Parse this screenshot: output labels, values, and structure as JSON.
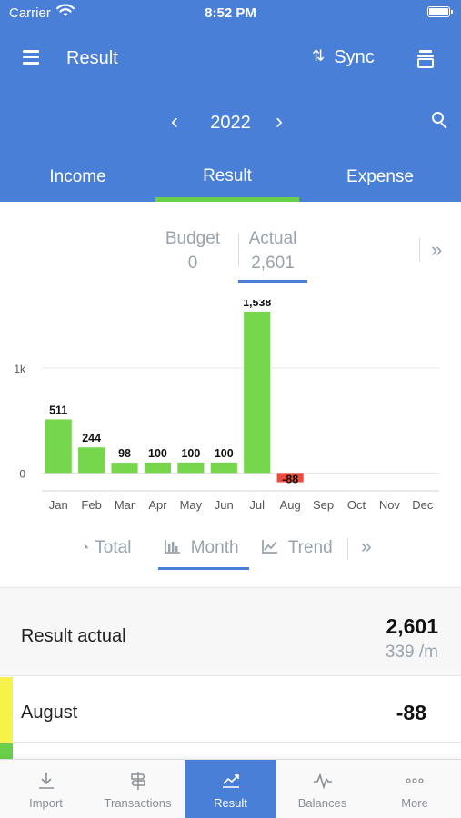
{
  "status": {
    "carrier": "Carrier",
    "time": "8:52 PM"
  },
  "header": {
    "title": "Result",
    "sync_label": "Sync",
    "year": "2022",
    "tabs": [
      {
        "label": "Income"
      },
      {
        "label": "Result"
      },
      {
        "label": "Expense"
      }
    ],
    "active_tab": "Result"
  },
  "budget_actual": {
    "budget_label": "Budget",
    "budget_value": "0",
    "actual_label": "Actual",
    "actual_value": "2,601"
  },
  "chart_data": {
    "type": "bar",
    "categories": [
      "Jan",
      "Feb",
      "Mar",
      "Apr",
      "May",
      "Jun",
      "Jul",
      "Aug",
      "Sep",
      "Oct",
      "Nov",
      "Dec"
    ],
    "values": [
      511,
      244,
      98,
      100,
      100,
      100,
      1538,
      -88,
      null,
      null,
      null,
      null
    ],
    "data_labels": [
      "511",
      "244",
      "98",
      "100",
      "100",
      "100",
      "1,538",
      "-88",
      "",
      "",
      "",
      ""
    ],
    "y_ticks": [
      {
        "value": 0,
        "label": "0"
      },
      {
        "value": 1000,
        "label": "1k"
      }
    ],
    "ylim": [
      -170,
      1650
    ],
    "grid": true,
    "colors": {
      "positive": "#76d64c",
      "negative": "#ef4b3c"
    }
  },
  "view_toggle": {
    "options": [
      {
        "label": "Total",
        "icon": "pie-icon"
      },
      {
        "label": "Month",
        "icon": "bar-chart-icon"
      },
      {
        "label": "Trend",
        "icon": "line-chart-icon"
      }
    ],
    "active": "Month"
  },
  "summary": {
    "label": "Result actual",
    "value": "2,601",
    "per_month": "339 /m"
  },
  "rows": [
    {
      "label": "August",
      "value": "-88",
      "color": "#f6f24a"
    }
  ],
  "bottom_nav": [
    {
      "label": "Import",
      "icon": "download-icon"
    },
    {
      "label": "Transactions",
      "icon": "signpost-icon"
    },
    {
      "label": "Result",
      "icon": "trend-icon"
    },
    {
      "label": "Balances",
      "icon": "pulse-icon"
    },
    {
      "label": "More",
      "icon": "ellipsis-icon"
    }
  ],
  "accent": "#4a7fd8",
  "active_green": "#6ad04a"
}
